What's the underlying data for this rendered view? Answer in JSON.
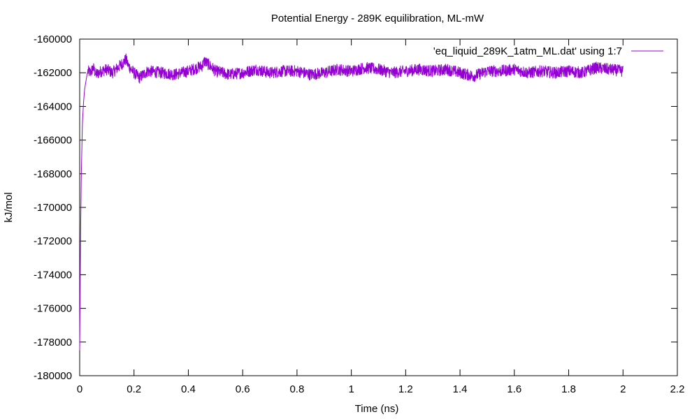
{
  "chart_data": {
    "type": "line",
    "title": "Potential Energy - 289K equilibration, ML-mW",
    "xlabel": "Time (ns)",
    "ylabel": "kJ/mol",
    "xlim": [
      0,
      2.2
    ],
    "ylim": [
      -180000,
      -160000
    ],
    "xticks": [
      0,
      0.2,
      0.4,
      0.6,
      0.8,
      1,
      1.2,
      1.4,
      1.6,
      1.8,
      2,
      2.2
    ],
    "yticks": [
      -180000,
      -178000,
      -176000,
      -174000,
      -172000,
      -170000,
      -168000,
      -166000,
      -164000,
      -162000,
      -160000
    ],
    "grid": false,
    "legend_position": "top-right",
    "series": [
      {
        "name": "'eq_liquid_289K_1atm_ML.dat' using 1:7",
        "color": "#9400d3",
        "x": [
          0,
          0.003,
          0.006,
          0.01,
          0.014,
          0.018,
          0.022,
          0.026,
          0.03,
          0.04,
          0.05,
          0.06,
          0.08,
          0.1,
          0.12,
          0.14,
          0.16,
          0.17,
          0.18,
          0.2,
          0.22,
          0.25,
          0.3,
          0.35,
          0.4,
          0.45,
          0.46,
          0.5,
          0.55,
          0.6,
          0.65,
          0.7,
          0.75,
          0.8,
          0.85,
          0.9,
          0.95,
          1.0,
          1.05,
          1.1,
          1.15,
          1.2,
          1.25,
          1.3,
          1.35,
          1.4,
          1.45,
          1.5,
          1.55,
          1.6,
          1.65,
          1.7,
          1.75,
          1.8,
          1.85,
          1.9,
          1.95,
          2.0
        ],
        "y": [
          -178500,
          -172000,
          -168000,
          -165000,
          -163800,
          -163000,
          -162600,
          -162200,
          -161900,
          -162000,
          -161700,
          -162100,
          -161900,
          -161800,
          -162000,
          -161700,
          -161400,
          -161200,
          -161600,
          -162000,
          -162300,
          -161900,
          -162000,
          -162100,
          -161900,
          -161600,
          -161300,
          -161900,
          -162100,
          -162000,
          -161800,
          -162000,
          -161900,
          -161900,
          -162100,
          -162000,
          -161800,
          -161900,
          -161700,
          -161800,
          -162000,
          -161900,
          -161800,
          -161900,
          -161800,
          -162000,
          -162200,
          -161900,
          -161900,
          -161800,
          -162000,
          -161900,
          -162000,
          -161900,
          -162000,
          -161700,
          -161800,
          -161900
        ]
      }
    ]
  }
}
